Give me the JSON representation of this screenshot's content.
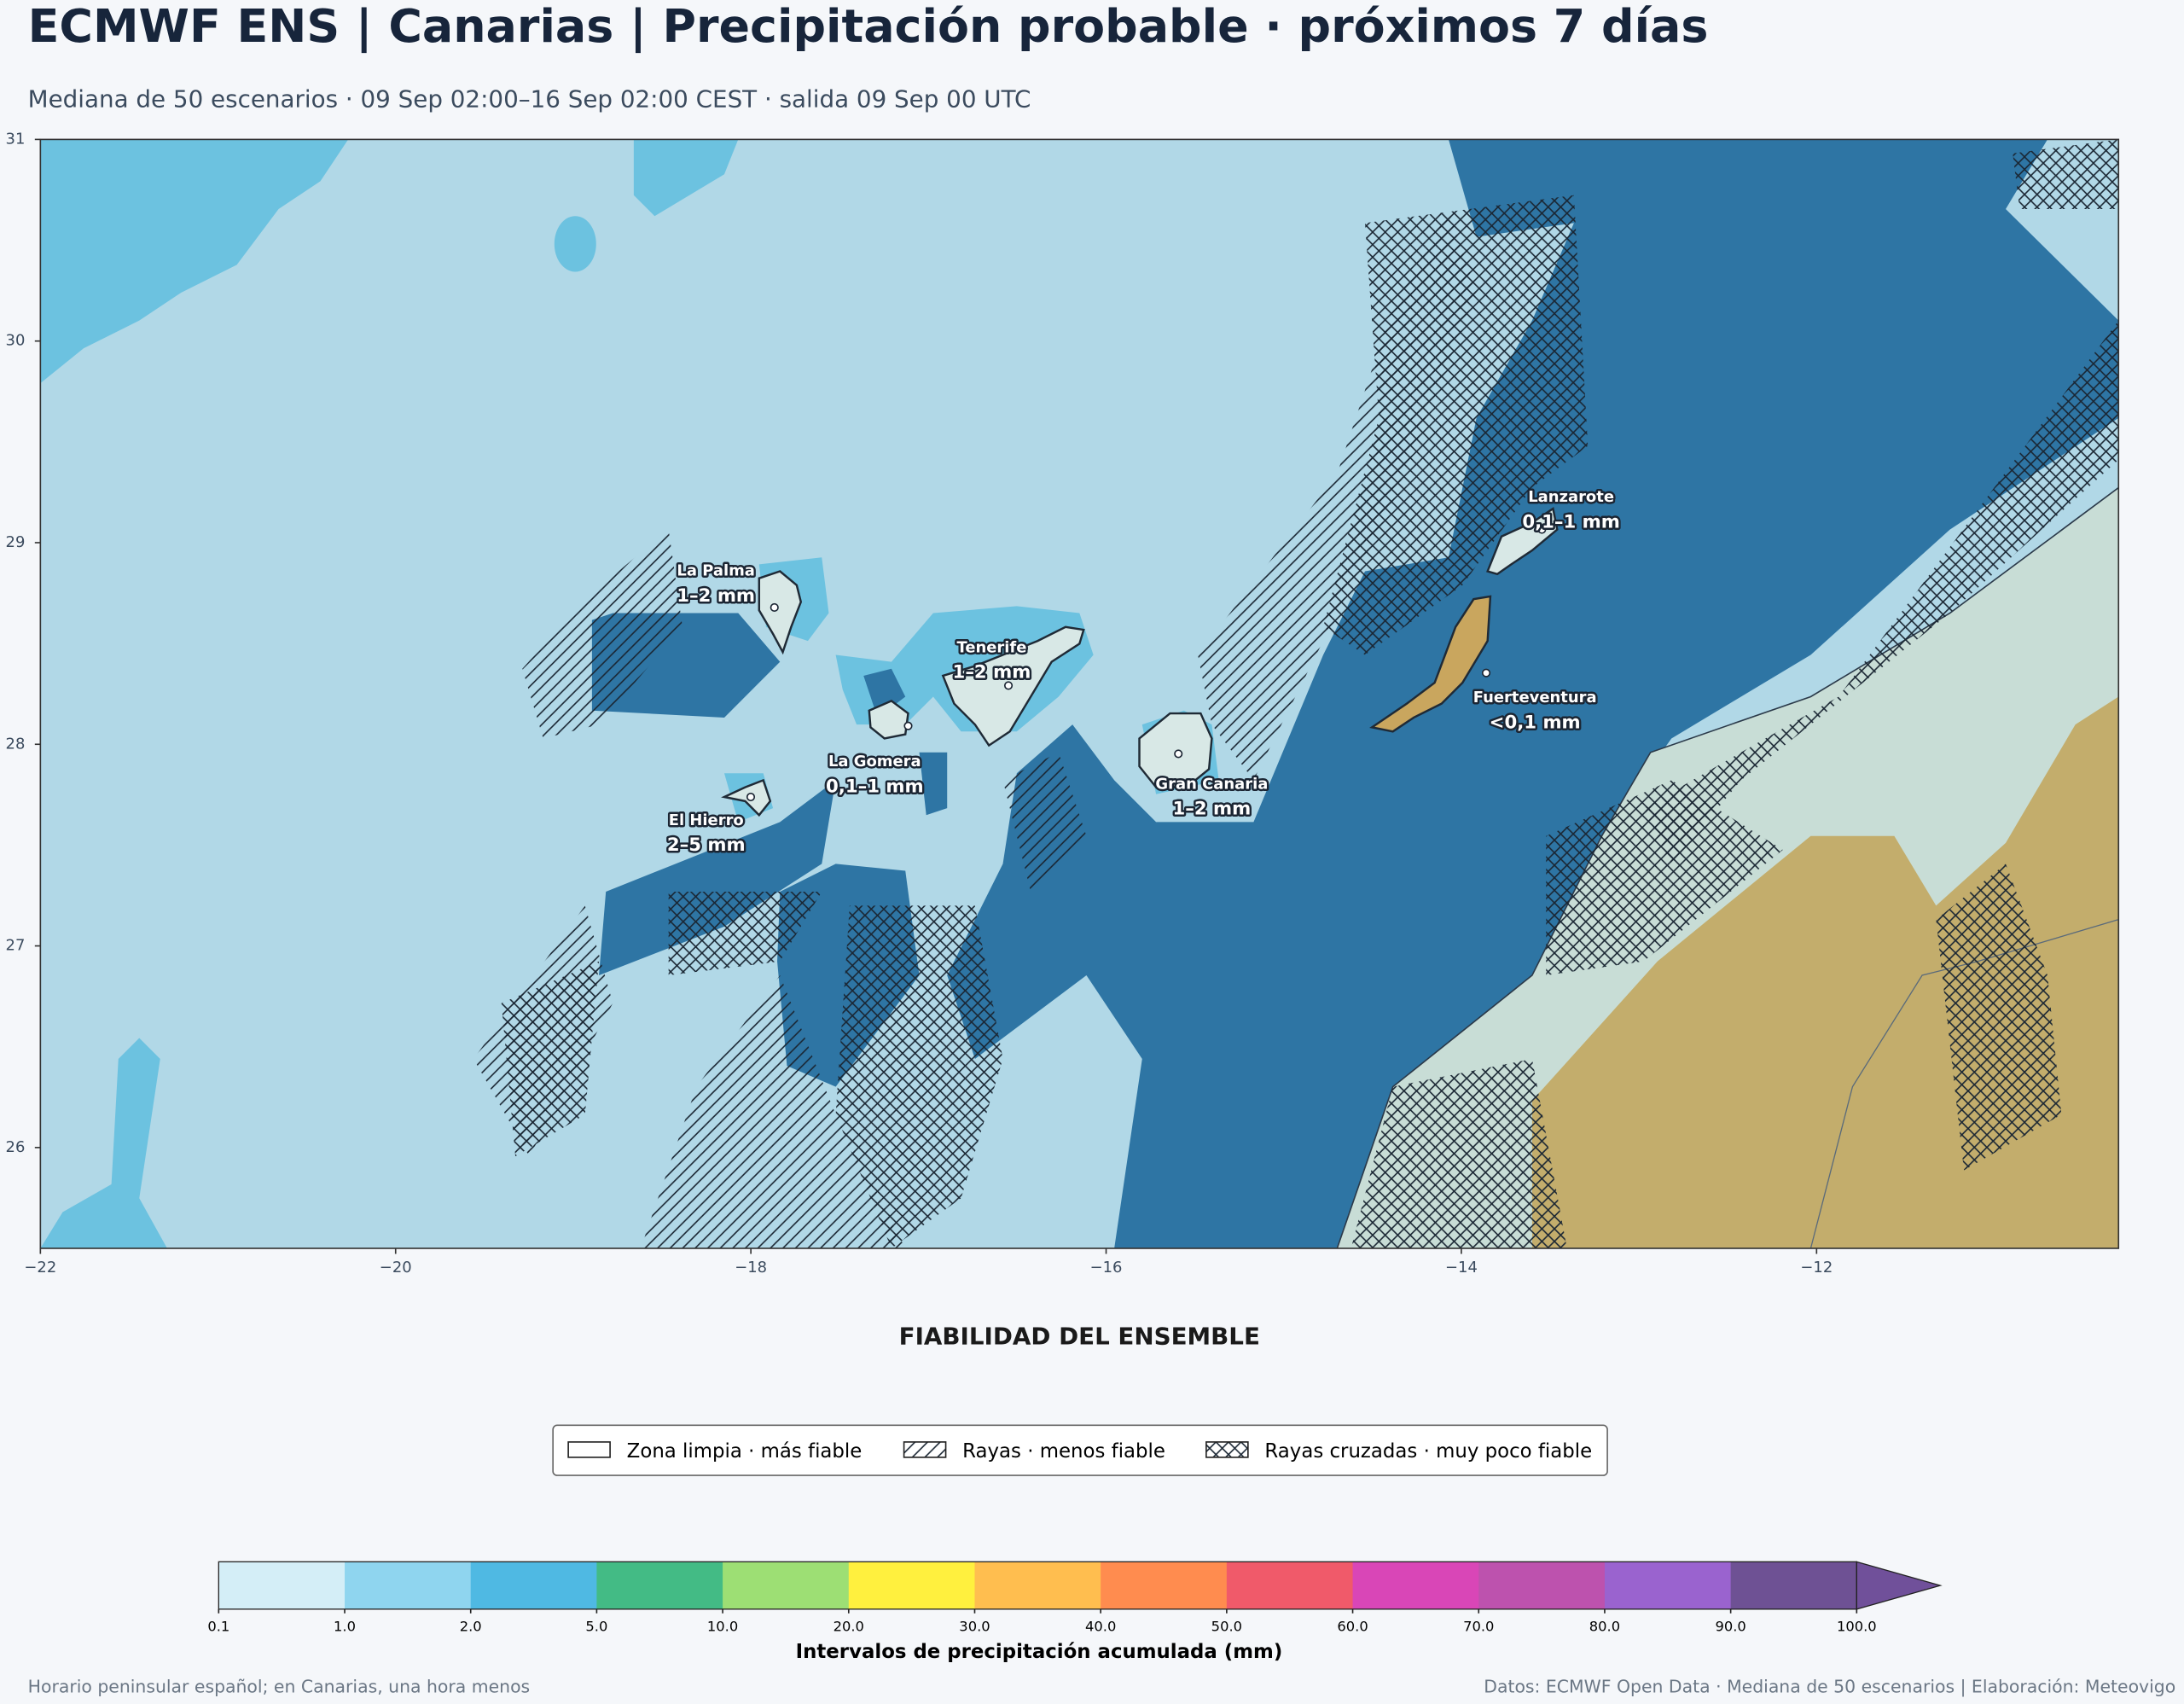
{
  "header": {
    "title": "ECMWF ENS | Canarias | Precipitación probable · próximos 7 días",
    "subtitle": "Mediana de 50 escenarios · 09 Sep 02:00–16 Sep 02:00 CEST · salida 09 Sep 00 UTC"
  },
  "map": {
    "type": "map",
    "xlim": [
      -22,
      -10.3
    ],
    "ylim": [
      25.5,
      31
    ],
    "xticks": [
      {
        "value": -22,
        "label": "−22"
      },
      {
        "value": -20,
        "label": "−20"
      },
      {
        "value": -18,
        "label": "−18"
      },
      {
        "value": -16,
        "label": "−16"
      },
      {
        "value": -14,
        "label": "−14"
      },
      {
        "value": -12,
        "label": "−12"
      }
    ],
    "yticks": [
      26,
      27,
      28,
      29,
      30,
      31
    ],
    "islands": [
      {
        "name": "La Palma",
        "amount": "1–2 mm"
      },
      {
        "name": "Tenerife",
        "amount": "1–2 mm"
      },
      {
        "name": "La Gomera",
        "amount": "0,1–1 mm"
      },
      {
        "name": "El Hierro",
        "amount": "2–5 mm"
      },
      {
        "name": "Gran Canaria",
        "amount": "1–2 mm"
      },
      {
        "name": "Lanzarote",
        "amount": "0,1–1 mm"
      },
      {
        "name": "Fuerteventura",
        "amount": "<0,1 mm"
      }
    ]
  },
  "legend": {
    "title": "FIABILIDAD DEL ENSEMBLE",
    "entries": [
      "Zona limpia · más fiable",
      "Rayas · menos fiable",
      "Rayas cruzadas · muy poco fiable"
    ]
  },
  "colorbar": {
    "label": "Intervalos de precipitación acumulada (mm)",
    "ticks": [
      {
        "value": 0.1,
        "label": "0.1"
      },
      {
        "value": 1,
        "label": "1.0"
      },
      {
        "value": 2,
        "label": "2.0"
      },
      {
        "value": 5,
        "label": "5.0"
      },
      {
        "value": 10,
        "label": "10.0"
      },
      {
        "value": 20,
        "label": "20.0"
      },
      {
        "value": 30,
        "label": "30.0"
      },
      {
        "value": 40,
        "label": "40.0"
      },
      {
        "value": 50,
        "label": "50.0"
      },
      {
        "value": 60,
        "label": "60.0"
      },
      {
        "value": 70,
        "label": "70.0"
      },
      {
        "value": 80,
        "label": "80.0"
      },
      {
        "value": 90,
        "label": "90.0"
      },
      {
        "value": 100,
        "label": "100.0"
      }
    ],
    "colors": [
      "#d4eef7",
      "#8fd5ef",
      "#4fb9e3",
      "#43bb85",
      "#9ddf74",
      "#fff03e",
      "#ffbe4f",
      "#ff8c4f",
      "#f05a6a",
      "#d946b7",
      "#bd52ae",
      "#9a63cf",
      "#6e5194",
      "#70509a"
    ]
  },
  "footer": {
    "left": "Horario peninsular español; en Canarias, una hora menos",
    "right": "Datos: ECMWF Open Data · Mediana de 50 escenarios | Elaboración: Meteovigo"
  }
}
